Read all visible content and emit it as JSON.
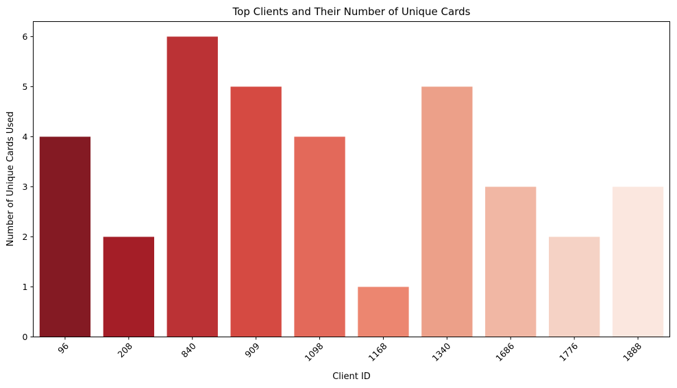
{
  "chart_data": {
    "type": "bar",
    "title": "Top Clients and Their Number of Unique Cards",
    "xlabel": "Client ID",
    "ylabel": "Number of Unique Cards Used",
    "categories": [
      "96",
      "208",
      "840",
      "909",
      "1098",
      "1168",
      "1340",
      "1686",
      "1776",
      "1888"
    ],
    "values": [
      4,
      2,
      6,
      5,
      4,
      1,
      5,
      3,
      2,
      3
    ],
    "colors": [
      "#841a23",
      "#a41e27",
      "#bb3235",
      "#d54a42",
      "#e3695a",
      "#ec8670",
      "#eca089",
      "#f1b7a4",
      "#f5d2c5",
      "#fbe7df"
    ],
    "yticks": [
      "0",
      "1",
      "2",
      "3",
      "4",
      "5",
      "6"
    ],
    "ylim": [
      0,
      6.3
    ],
    "grid": false,
    "legend": "none"
  }
}
